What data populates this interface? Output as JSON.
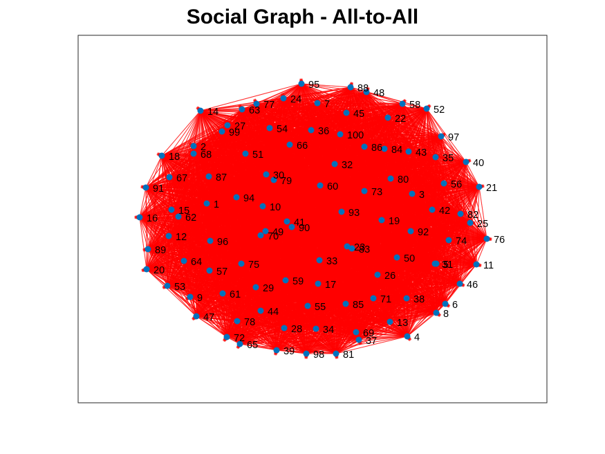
{
  "title": "Social Graph - All-to-All",
  "colors": {
    "edge": "#ff0000",
    "node": "#0072bd",
    "axes": "#262626",
    "background": "#ffffff"
  },
  "graph": {
    "type": "directed",
    "topology": "all-to-all",
    "node_count": 100,
    "node_labels": [
      "1",
      "2",
      "3",
      "4",
      "5",
      "6",
      "7",
      "8",
      "9",
      "10",
      "11",
      "12",
      "13",
      "14",
      "15",
      "16",
      "17",
      "18",
      "19",
      "20",
      "21",
      "22",
      "23",
      "24",
      "25",
      "26",
      "27",
      "28",
      "29",
      "30",
      "31",
      "32",
      "33",
      "34",
      "35",
      "36",
      "37",
      "38",
      "39",
      "40",
      "41",
      "42",
      "43",
      "44",
      "45",
      "46",
      "47",
      "48",
      "49",
      "50",
      "51",
      "52",
      "53",
      "54",
      "55",
      "56",
      "57",
      "58",
      "59",
      "60",
      "61",
      "62",
      "63",
      "64",
      "65",
      "66",
      "67",
      "68",
      "69",
      "70",
      "71",
      "72",
      "73",
      "74",
      "75",
      "76",
      "77",
      "78",
      "79",
      "80",
      "81",
      "82",
      "83",
      "84",
      "85",
      "86",
      "87",
      "88",
      "89",
      "90",
      "91",
      "92",
      "93",
      "94",
      "95",
      "96",
      "97",
      "98",
      "99",
      "100"
    ]
  }
}
